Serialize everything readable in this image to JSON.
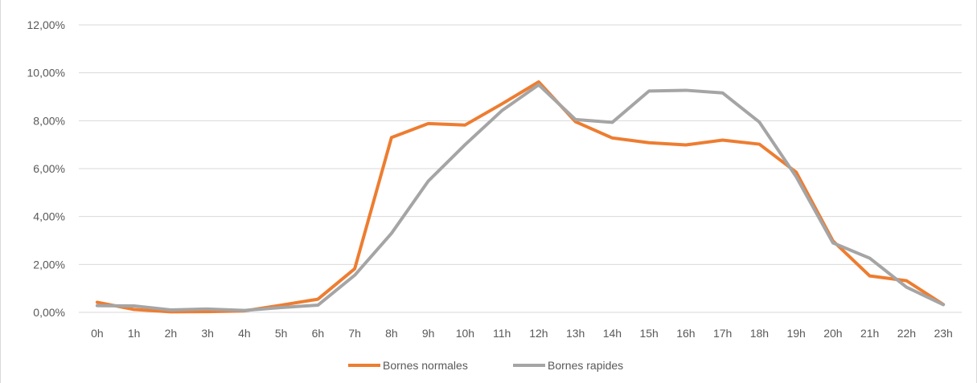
{
  "chart_data": {
    "type": "line",
    "title": "",
    "xlabel": "",
    "ylabel": "",
    "ylim": [
      0,
      12
    ],
    "ytick_step": 2,
    "ytick_labels": [
      "0,00%",
      "2,00%",
      "4,00%",
      "6,00%",
      "8,00%",
      "10,00%",
      "12,00%"
    ],
    "grid": true,
    "legend_position": "bottom",
    "categories": [
      "0h",
      "1h",
      "2h",
      "3h",
      "4h",
      "5h",
      "6h",
      "7h",
      "8h",
      "9h",
      "10h",
      "11h",
      "12h",
      "13h",
      "14h",
      "15h",
      "16h",
      "17h",
      "18h",
      "19h",
      "20h",
      "21h",
      "22h",
      "23h"
    ],
    "series": [
      {
        "name": "Bornes normales",
        "color": "#ED7D31",
        "values": [
          0.42,
          0.12,
          0.02,
          0.03,
          0.06,
          0.3,
          0.55,
          1.82,
          7.3,
          7.88,
          7.82,
          8.7,
          9.62,
          7.96,
          7.28,
          7.08,
          6.99,
          7.19,
          7.02,
          5.85,
          2.98,
          1.52,
          1.32,
          0.33
        ]
      },
      {
        "name": "Bornes rapides",
        "color": "#A5A5A5",
        "values": [
          0.28,
          0.27,
          0.1,
          0.14,
          0.08,
          0.2,
          0.3,
          1.55,
          3.3,
          5.48,
          7.0,
          8.42,
          9.5,
          8.05,
          7.93,
          9.24,
          9.27,
          9.16,
          7.94,
          5.66,
          2.9,
          2.26,
          1.05,
          0.32
        ]
      }
    ]
  }
}
